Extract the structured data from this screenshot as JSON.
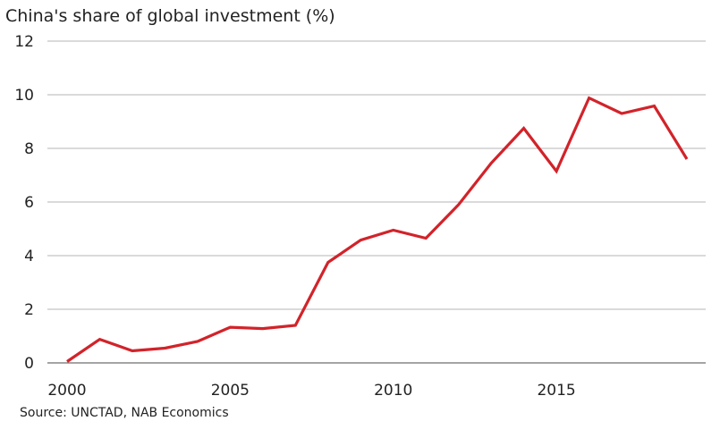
{
  "chart_data": {
    "type": "line",
    "title": "China's share of global investment (%)",
    "source": "Source: UNCTAD, NAB Economics",
    "xlim": [
      2000,
      2019
    ],
    "ylim": [
      0,
      12
    ],
    "y_ticks": [
      0,
      2,
      4,
      6,
      8,
      10,
      12
    ],
    "x_ticks": [
      2000,
      2005,
      2010,
      2015
    ],
    "grid": true,
    "line_color": "#d2232a",
    "series": [
      {
        "values": [
          {
            "x": 2000,
            "y": 0.05
          },
          {
            "x": 2001,
            "y": 0.88
          },
          {
            "x": 2002,
            "y": 0.45
          },
          {
            "x": 2003,
            "y": 0.55
          },
          {
            "x": 2004,
            "y": 0.8
          },
          {
            "x": 2005,
            "y": 1.33
          },
          {
            "x": 2006,
            "y": 1.28
          },
          {
            "x": 2007,
            "y": 1.4
          },
          {
            "x": 2008,
            "y": 3.75
          },
          {
            "x": 2009,
            "y": 4.58
          },
          {
            "x": 2010,
            "y": 4.95
          },
          {
            "x": 2011,
            "y": 4.65
          },
          {
            "x": 2012,
            "y": 5.9
          },
          {
            "x": 2013,
            "y": 7.45
          },
          {
            "x": 2014,
            "y": 8.75
          },
          {
            "x": 2015,
            "y": 7.15
          },
          {
            "x": 2016,
            "y": 9.88
          },
          {
            "x": 2017,
            "y": 9.3
          },
          {
            "x": 2018,
            "y": 9.58
          },
          {
            "x": 2019,
            "y": 7.6
          }
        ]
      }
    ]
  }
}
